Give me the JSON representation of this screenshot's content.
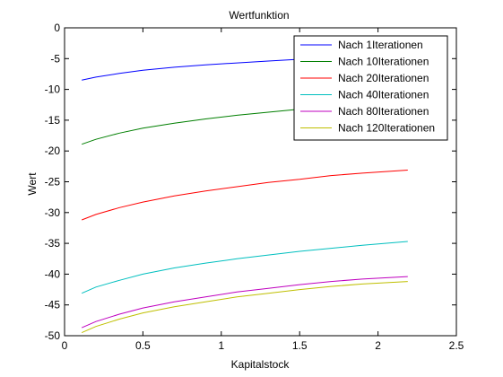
{
  "chart_data": {
    "type": "line",
    "title": "Wertfunktion",
    "xlabel": "Kapitalstock",
    "ylabel": "Wert",
    "xlim": [
      0,
      2.5
    ],
    "ylim": [
      -50,
      0
    ],
    "xticks": [
      "0",
      "0.5",
      "1",
      "1.5",
      "2",
      "2.5"
    ],
    "xtick_values": [
      0,
      0.5,
      1,
      1.5,
      2,
      2.5
    ],
    "yticks": [
      "0",
      "-5",
      "-10",
      "-15",
      "-20",
      "-25",
      "-30",
      "-35",
      "-40",
      "-45",
      "-50"
    ],
    "ytick_values": [
      0,
      -5,
      -10,
      -15,
      -20,
      -25,
      -30,
      -35,
      -40,
      -45,
      -50
    ],
    "grid": false,
    "legend_position": "top-right",
    "series": [
      {
        "name": "Nach 1Iterationen",
        "color": "#0000ff",
        "x": [
          0.11,
          0.2,
          0.35,
          0.5,
          0.7,
          0.9,
          1.1,
          1.3,
          1.5,
          1.7,
          1.9,
          2.19
        ],
        "y": [
          -8.5,
          -8.0,
          -7.4,
          -6.9,
          -6.4,
          -6.0,
          -5.7,
          -5.4,
          -5.1,
          -4.9,
          -4.7,
          -4.4
        ]
      },
      {
        "name": "Nach 10Iterationen",
        "color": "#007f00",
        "x": [
          0.11,
          0.2,
          0.35,
          0.5,
          0.7,
          0.9,
          1.1,
          1.3,
          1.5,
          1.7,
          1.9,
          2.19
        ],
        "y": [
          -18.9,
          -18.1,
          -17.1,
          -16.3,
          -15.5,
          -14.8,
          -14.2,
          -13.7,
          -13.2,
          -12.7,
          -12.3,
          -11.8
        ]
      },
      {
        "name": "Nach 20Iterationen",
        "color": "#ff0000",
        "x": [
          0.11,
          0.2,
          0.35,
          0.5,
          0.7,
          0.9,
          1.1,
          1.3,
          1.5,
          1.7,
          1.9,
          2.19
        ],
        "y": [
          -31.2,
          -30.3,
          -29.2,
          -28.3,
          -27.3,
          -26.5,
          -25.8,
          -25.1,
          -24.6,
          -24.0,
          -23.6,
          -23.1
        ]
      },
      {
        "name": "Nach 40Iterationen",
        "color": "#00bfbf",
        "x": [
          0.11,
          0.2,
          0.35,
          0.5,
          0.7,
          0.9,
          1.1,
          1.3,
          1.5,
          1.7,
          1.9,
          2.19
        ],
        "y": [
          -43.1,
          -42.1,
          -41.0,
          -40.0,
          -39.0,
          -38.2,
          -37.5,
          -36.9,
          -36.3,
          -35.8,
          -35.3,
          -34.7
        ]
      },
      {
        "name": "Nach 80Iterationen",
        "color": "#bf00bf",
        "x": [
          0.11,
          0.2,
          0.35,
          0.5,
          0.7,
          0.9,
          1.1,
          1.3,
          1.5,
          1.7,
          1.9,
          2.19
        ],
        "y": [
          -48.7,
          -47.7,
          -46.5,
          -45.5,
          -44.5,
          -43.7,
          -42.9,
          -42.3,
          -41.7,
          -41.2,
          -40.8,
          -40.4
        ]
      },
      {
        "name": "Nach 120Iterationen",
        "color": "#bfbf00",
        "x": [
          0.11,
          0.2,
          0.35,
          0.5,
          0.7,
          0.9,
          1.1,
          1.3,
          1.5,
          1.7,
          1.9,
          2.19
        ],
        "y": [
          -49.5,
          -48.5,
          -47.3,
          -46.3,
          -45.3,
          -44.5,
          -43.7,
          -43.1,
          -42.5,
          -42.0,
          -41.6,
          -41.2
        ]
      }
    ]
  }
}
